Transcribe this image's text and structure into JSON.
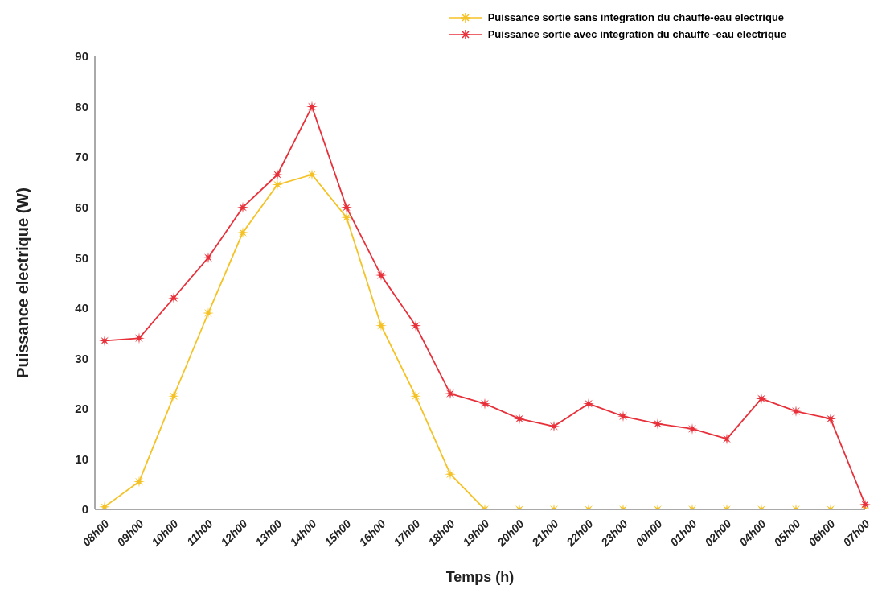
{
  "chart_data": {
    "type": "line",
    "xlabel": "Temps (h)",
    "ylabel": "Puissance electrique  (W)",
    "categories": [
      "08h00",
      "09h00",
      "10h00",
      "11h00",
      "12h00",
      "13h00",
      "14h00",
      "15h00",
      "16h00",
      "17h00",
      "18h00",
      "19h00",
      "20h00",
      "21h00",
      "22h00",
      "23h00",
      "00h00",
      "01h00",
      "02h00",
      "04h00",
      "05h00",
      "06h00",
      "07h00"
    ],
    "series": [
      {
        "name": "Puissance sortie sans integration du chauffe-eau electrique",
        "color": "#f5c226",
        "values": [
          0.5,
          5.5,
          22.5,
          39,
          55,
          64.5,
          66.5,
          58,
          36.5,
          22.5,
          7,
          0,
          0,
          0,
          0,
          0,
          0,
          0,
          0,
          0,
          0,
          0,
          0
        ]
      },
      {
        "name": "Puissance sortie avec integration du chauffe -eau electrique",
        "color": "#e8303a",
        "values": [
          33.5,
          34,
          42,
          50,
          60,
          66.5,
          80,
          60,
          46.5,
          36.5,
          23,
          21,
          18,
          16.5,
          21,
          18.5,
          17,
          16,
          14,
          22,
          19.5,
          18,
          1
        ]
      }
    ],
    "ylim": [
      0,
      90
    ],
    "yticks": [
      0,
      10,
      20,
      30,
      40,
      50,
      60,
      70,
      80,
      90
    ],
    "grid": false,
    "legend": "top right",
    "marker": "star",
    "line_style": "solid"
  }
}
